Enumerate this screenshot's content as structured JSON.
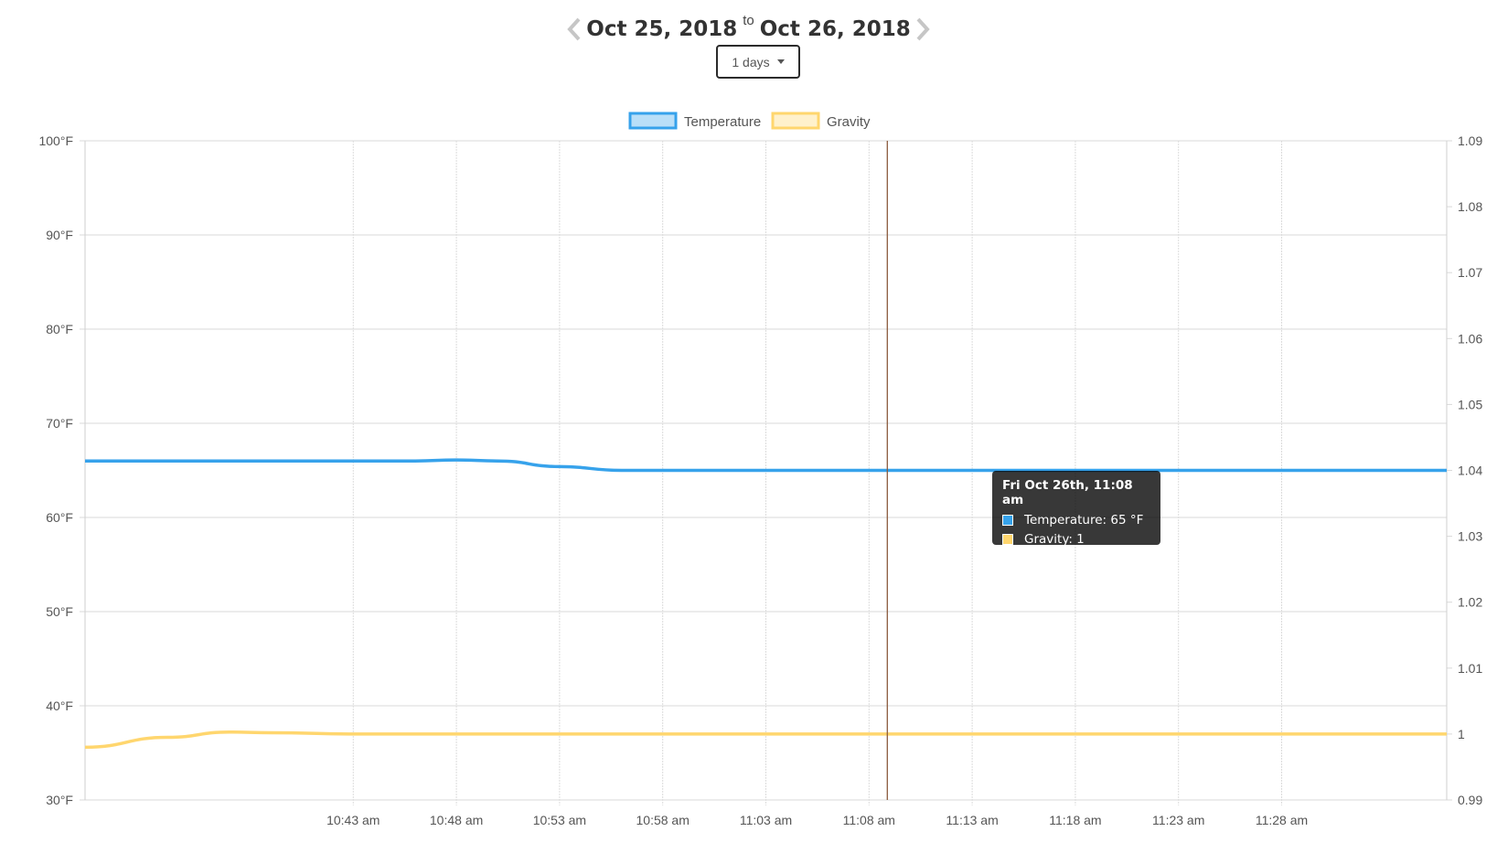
{
  "header": {
    "start_date": "Oct 25, 2018",
    "to_label": "to",
    "end_date": "Oct 26, 2018",
    "prev_icon": "chevron-left-icon",
    "next_icon": "chevron-right-icon"
  },
  "range_selector": {
    "label": "1 days"
  },
  "tooltip": {
    "title": "Fri Oct 26th, 11:08 am",
    "rows": [
      {
        "text": "Temperature: 65 °F",
        "color": "#36a2eb"
      },
      {
        "text": "Gravity: 1",
        "color": "#ffd66e"
      }
    ]
  },
  "chart_data": {
    "type": "line",
    "legend_position": "top",
    "grid": true,
    "y_left": {
      "min": 30,
      "max": 100,
      "ticks": [
        "100°F",
        "90°F",
        "80°F",
        "70°F",
        "60°F",
        "50°F",
        "40°F",
        "30°F"
      ]
    },
    "y_right": {
      "min": 0.99,
      "max": 1.09,
      "ticks": [
        "1.09",
        "1.08",
        "1.07",
        "1.06",
        "1.05",
        "1.04",
        "1.03",
        "1.02",
        "1.01",
        "1",
        "0.99"
      ]
    },
    "x_ticks": [
      "10:43 am",
      "10:48 am",
      "10:53 am",
      "10:58 am",
      "11:03 am",
      "11:08 am",
      "11:13 am",
      "11:18 am",
      "11:23 am",
      "11:28 am"
    ],
    "x_range": [
      "10:30 am",
      "11:36 am"
    ],
    "hover_time": "11:08 am",
    "hover_line_color": "#8b5a3c",
    "series": [
      {
        "name": "Temperature",
        "axis": "left",
        "color": "#36a2eb",
        "points": [
          [
            "10:30 am",
            66.0
          ],
          [
            "10:40 am",
            66.0
          ],
          [
            "10:46 am",
            66.0
          ],
          [
            "10:48 am",
            66.1
          ],
          [
            "10:50 am",
            66.0
          ],
          [
            "10:53 am",
            65.4
          ],
          [
            "10:56 am",
            65.0
          ],
          [
            "10:58 am",
            65.0
          ],
          [
            "11:03 am",
            65.0
          ],
          [
            "11:08 am",
            65.0
          ],
          [
            "11:18 am",
            65.0
          ],
          [
            "11:28 am",
            65.0
          ],
          [
            "11:36 am",
            65.0
          ]
        ]
      },
      {
        "name": "Gravity",
        "axis": "right",
        "color": "#ffd66e",
        "points": [
          [
            "10:30 am",
            0.998
          ],
          [
            "10:34 am",
            0.9995
          ],
          [
            "10:37 am",
            1.0003
          ],
          [
            "10:39 am",
            1.0002
          ],
          [
            "10:43 am",
            1.0
          ],
          [
            "10:53 am",
            1.0
          ],
          [
            "11:03 am",
            1.0
          ],
          [
            "11:13 am",
            1.0
          ],
          [
            "11:23 am",
            1.0
          ],
          [
            "11:36 am",
            1.0
          ]
        ]
      }
    ]
  }
}
